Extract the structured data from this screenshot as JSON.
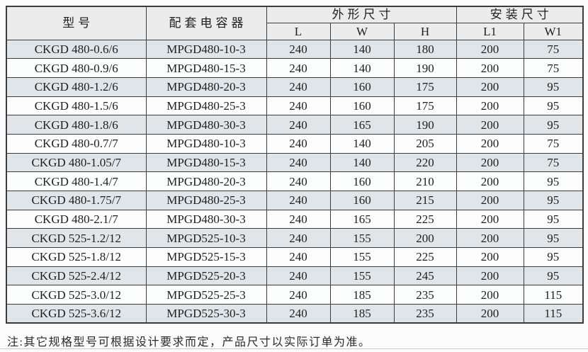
{
  "colors": {
    "border": "#3c3c3c",
    "header_bg": "#ececec",
    "row_shade": "#dfe5e9",
    "row_plain": "#fdfdfd",
    "text": "#1f1f1f",
    "page_bg": "#fbfbfb"
  },
  "table": {
    "headers": {
      "model": "型号",
      "capacitor": "配套电容器",
      "outline_group": "外形尺寸",
      "install_group": "安装尺寸",
      "sub": [
        "L",
        "W",
        "H",
        "L1",
        "W1"
      ]
    },
    "rows": [
      [
        "CKGD 480-0.6/6",
        "MPGD480-10-3",
        "240",
        "140",
        "180",
        "200",
        "75"
      ],
      [
        "CKGD 480-0.9/6",
        "MPGD480-15-3",
        "240",
        "140",
        "190",
        "200",
        "75"
      ],
      [
        "CKGD 480-1.2/6",
        "MPGD480-20-3",
        "240",
        "160",
        "175",
        "200",
        "95"
      ],
      [
        "CKGD 480-1.5/6",
        "MPGD480-25-3",
        "240",
        "160",
        "175",
        "200",
        "95"
      ],
      [
        "CKGD 480-1.8/6",
        "MPGD480-30-3",
        "240",
        "165",
        "190",
        "200",
        "95"
      ],
      [
        "CKGD 480-0.7/7",
        "MPGD480-10-3",
        "240",
        "140",
        "205",
        "200",
        "75"
      ],
      [
        "CKGD 480-1.05/7",
        "MPGD480-15-3",
        "240",
        "140",
        "220",
        "200",
        "75"
      ],
      [
        "CKGD 480-1.4/7",
        "MPGD480-20-3",
        "240",
        "160",
        "210",
        "200",
        "95"
      ],
      [
        "CKGD 480-1.75/7",
        "MPGD480-25-3",
        "240",
        "160",
        "215",
        "200",
        "95"
      ],
      [
        "CKGD 480-2.1/7",
        "MPGD480-30-3",
        "240",
        "165",
        "225",
        "200",
        "95"
      ],
      [
        "CKGD 525-1.2/12",
        "MPGD525-10-3",
        "240",
        "155",
        "200",
        "200",
        "95"
      ],
      [
        "CKGD 525-1.8/12",
        "MPGD525-15-3",
        "240",
        "155",
        "225",
        "200",
        "95"
      ],
      [
        "CKGD 525-2.4/12",
        "MPGD525-20-3",
        "240",
        "155",
        "245",
        "200",
        "95"
      ],
      [
        "CKGD 525-3.0/12",
        "MPGD525-25-3",
        "240",
        "185",
        "235",
        "200",
        "115"
      ],
      [
        "CKGD 525-3.6/12",
        "MPGD525-30-3",
        "240",
        "185",
        "235",
        "200",
        "115"
      ]
    ]
  },
  "footer": {
    "note": "注:其它规格型号可根据设计要求而定，产品尺寸以实际订单为准。"
  }
}
